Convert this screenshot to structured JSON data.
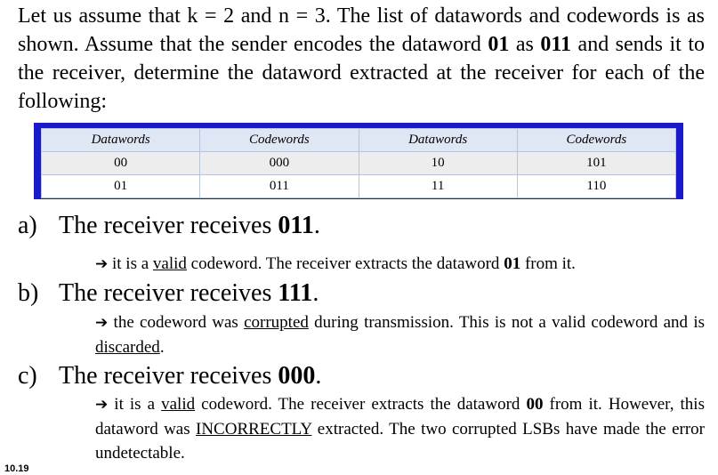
{
  "intro": {
    "line1": "Let us assume that k = 2 and n = 3. The list of datawords and codewords is as shown. Assume that the sender encodes the dataword ",
    "bold1": "01",
    "mid": " as ",
    "bold2": "011",
    "line2": " and sends it to the receiver, determine the dataword extracted at the receiver for each of the following:"
  },
  "table": {
    "headers": [
      "Datawords",
      "Codewords",
      "Datawords",
      "Codewords"
    ],
    "rows": [
      [
        "00",
        "000",
        "10",
        "101"
      ],
      [
        "01",
        "011",
        "11",
        "110"
      ]
    ]
  },
  "items": [
    {
      "label": "a)",
      "text": "The receiver receives ",
      "value": "011",
      "end": ".",
      "answer": {
        "arrow": "➔",
        "p1": " it is a ",
        "u1": "valid",
        "p2": " codeword.  The receiver extracts the dataword ",
        "b1": "01",
        "p3": " from it."
      }
    },
    {
      "label": "b)",
      "text": "The receiver receives ",
      "value": "111",
      "end": ".",
      "answer": {
        "arrow": "➔",
        "p1": " the codeword was ",
        "u1": "corrupted",
        "p2": " during transmission.  This is not a valid codeword and is ",
        "u2": "discarded",
        "p3": "."
      }
    },
    {
      "label": "c)",
      "text": "The receiver receives ",
      "value": "000",
      "end": ".",
      "answer": {
        "arrow": "➔",
        "p1": "  it is a ",
        "u1": "valid",
        "p2": " codeword.  The receiver extracts the dataword ",
        "b1": "00",
        "p3": " from it.  However, this dataword was ",
        "u2": "INCORRECTLY",
        "p4": " extracted.   The two corrupted LSBs have made the error undetectable."
      }
    }
  ],
  "slide_number": "10.19",
  "colors": {
    "table_frame": "#1a1acc",
    "header_bg": "#dfe7f4"
  }
}
